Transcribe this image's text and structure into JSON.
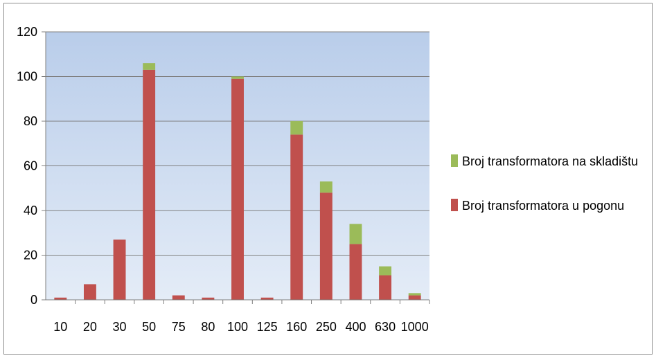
{
  "chart_data": {
    "type": "bar",
    "stacked": true,
    "categories": [
      "10",
      "20",
      "30",
      "50",
      "75",
      "80",
      "100",
      "125",
      "160",
      "250",
      "400",
      "630",
      "1000"
    ],
    "series": [
      {
        "name": "Broj transformatora u pogonu",
        "color": "#c0504d",
        "values": [
          1,
          7,
          27,
          103,
          2,
          1,
          99,
          1,
          74,
          48,
          25,
          11,
          2
        ]
      },
      {
        "name": "Broj transformatora na skladištu",
        "color": "#9bbb59",
        "values": [
          0,
          0,
          0,
          3,
          0,
          0,
          1,
          0,
          6,
          5,
          9,
          4,
          1
        ]
      }
    ],
    "ylim": [
      0,
      120
    ],
    "yticks": [
      0,
      20,
      40,
      60,
      80,
      100,
      120
    ],
    "grid": true,
    "legend_position": "right",
    "legend_order": [
      "Broj transformatora na skladištu",
      "Broj transformatora u pogonu"
    ],
    "title": "",
    "xlabel": "",
    "ylabel": "",
    "colors": {
      "plot_gradient_top": "#b9cdea",
      "plot_gradient_bottom": "#e4ecf7",
      "gridline": "#7f7f7f",
      "axis": "#7f7f7f"
    }
  }
}
